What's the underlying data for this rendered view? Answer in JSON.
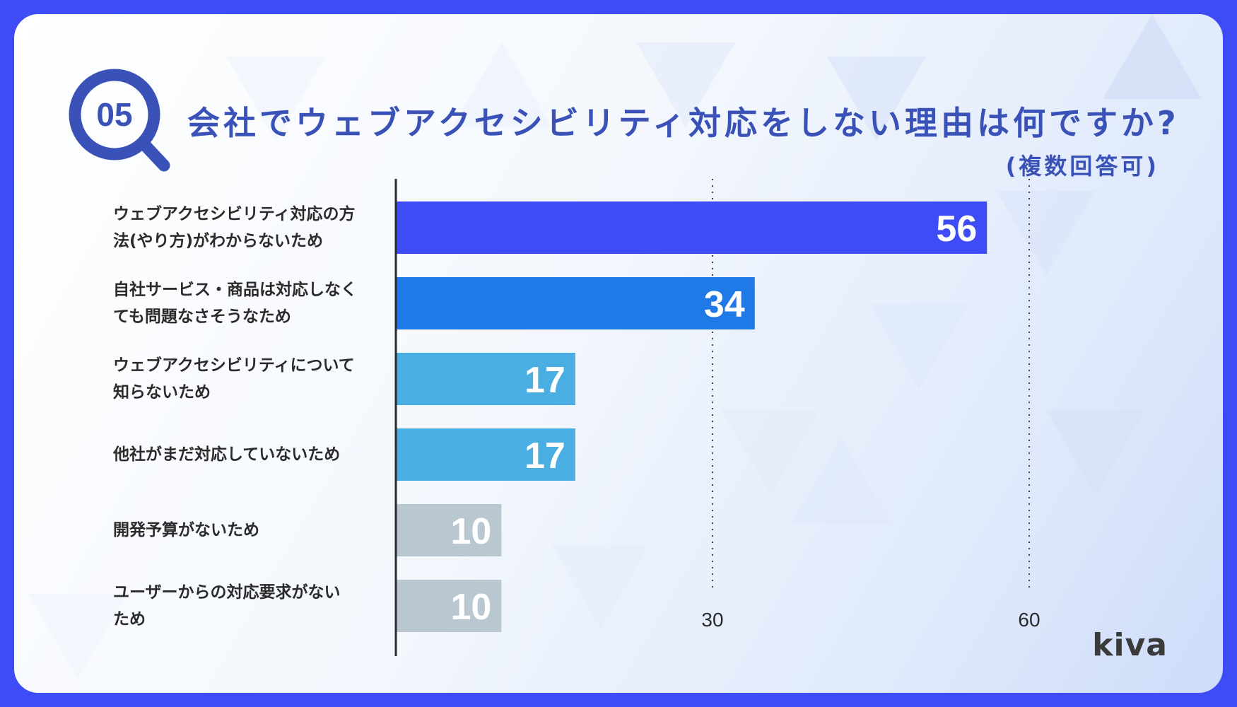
{
  "header": {
    "badge": "05",
    "title": "会社でウェブアクセシビリティ対応をしない理由は何ですか?",
    "subtitle": "(複数回答可)"
  },
  "brand": {
    "logo": "kiva"
  },
  "colors": {
    "frame": "#3d4cf5",
    "title": "#3a52b8",
    "bar_top": "#3d4cf5",
    "bar_second": "#1f7ae8",
    "bar_mid": "#4aaee3",
    "bar_low": "#b9c7d1",
    "axis": "#2b2b2b"
  },
  "chart_data": {
    "type": "bar",
    "orientation": "horizontal",
    "title": "会社でウェブアクセシビリティ対応をしない理由は何ですか?",
    "subtitle": "(複数回答可)",
    "categories": [
      [
        "ウェブアクセシビリティ対応の方",
        "法(やり方)がわからないため"
      ],
      [
        "自社サービス・商品は対応しなく",
        "ても問題なさそうなため"
      ],
      [
        "ウェブアクセシビリティについて",
        "知らないため"
      ],
      [
        "他社がまだ対応していないため"
      ],
      [
        "開発予算がないため"
      ],
      [
        "ユーザーからの対応要求がない",
        "ため"
      ]
    ],
    "values": [
      56,
      34,
      17,
      17,
      10,
      10
    ],
    "bar_colors": [
      "#3d4cf5",
      "#1f7ae8",
      "#4aaee3",
      "#4aaee3",
      "#b9c7d1",
      "#b9c7d1"
    ],
    "xlim": [
      0,
      60
    ],
    "xticks": [
      30,
      60
    ],
    "grid": "dotted vertical at ticks",
    "xlabel": "",
    "ylabel": ""
  }
}
